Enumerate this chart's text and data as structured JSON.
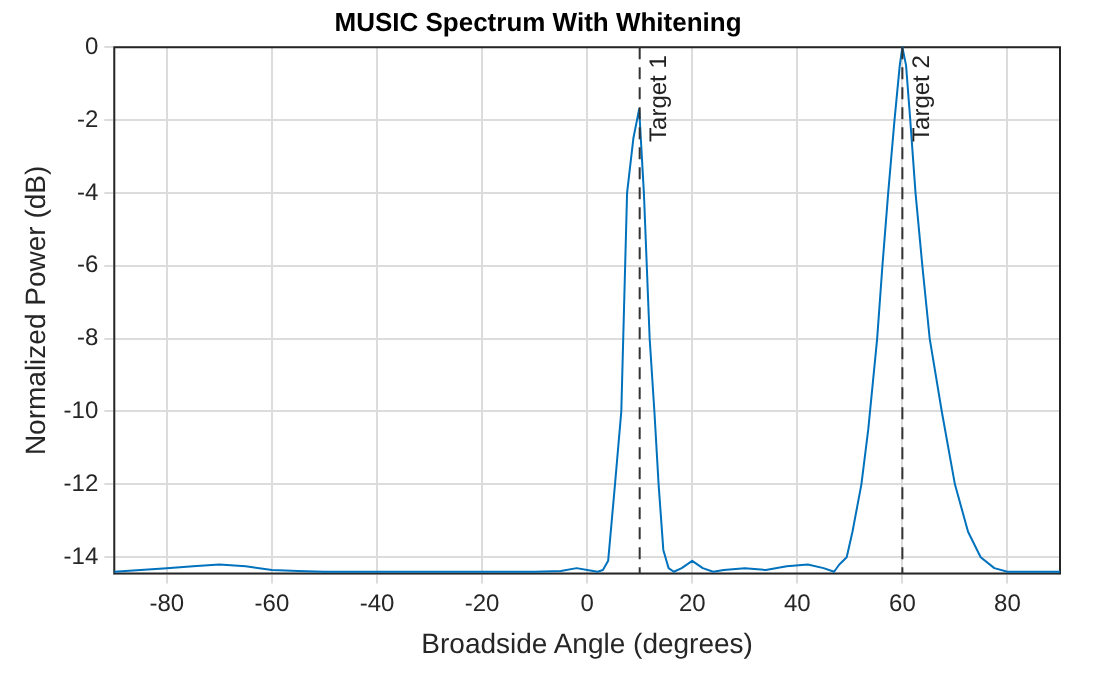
{
  "chart_data": {
    "type": "line",
    "title": "MUSIC Spectrum With Whitening",
    "xlabel": "Broadside Angle (degrees)",
    "ylabel": "Normalized Power (dB)",
    "series": [
      {
        "color": "#0072bd",
        "x": [
          -90,
          -85,
          -80,
          -75,
          -70,
          -65,
          -60,
          -55,
          -50,
          -40,
          -30,
          -20,
          -10,
          -5,
          -2,
          0,
          2,
          3,
          4,
          5.3,
          6.5,
          7.6,
          8.8,
          9.9,
          10.8,
          11.9,
          12.8,
          13.6,
          14.5,
          15.5,
          16.5,
          18,
          20,
          22,
          24,
          26,
          30,
          34,
          38,
          42,
          45,
          47,
          48,
          49.4,
          50.5,
          52.2,
          53.5,
          55.2,
          56.2,
          57.3,
          58.5,
          59.5,
          60,
          60.7,
          61.5,
          62.5,
          63.8,
          65.2,
          67.5,
          70,
          72.5,
          74.9,
          77.5,
          80,
          85,
          90
        ],
        "values": [
          -14.4,
          -14.35,
          -14.3,
          -14.25,
          -14.2,
          -14.25,
          -14.35,
          -14.38,
          -14.4,
          -14.4,
          -14.4,
          -14.4,
          -14.4,
          -14.38,
          -14.3,
          -14.35,
          -14.4,
          -14.35,
          -14.1,
          -12,
          -10,
          -4,
          -2.5,
          -1.7,
          -4,
          -8,
          -10,
          -12,
          -13.8,
          -14.3,
          -14.4,
          -14.3,
          -14.1,
          -14.3,
          -14.4,
          -14.35,
          -14.3,
          -14.35,
          -14.25,
          -14.2,
          -14.3,
          -14.4,
          -14.2,
          -14,
          -13.3,
          -12,
          -10.5,
          -8,
          -6,
          -4,
          -2,
          -0.5,
          0,
          -0.5,
          -2,
          -4,
          -6,
          -8,
          -10,
          -12,
          -13.3,
          -14,
          -14.3,
          -14.4,
          -14.4,
          -14.4
        ]
      }
    ],
    "xlim": [
      -90,
      90
    ],
    "xticks": [
      -80,
      -60,
      -40,
      -20,
      0,
      20,
      40,
      60,
      80
    ],
    "ylim": [
      -14.45,
      0
    ],
    "yticks": [
      -14,
      -12,
      -10,
      -8,
      -6,
      -4,
      -2,
      0
    ],
    "grid": true,
    "legend": false,
    "marker": "none",
    "line_style": "solid",
    "ref_lines": [
      {
        "axis": "x",
        "value": 10,
        "label": "Target 1",
        "color": "#333333",
        "line_style": "dashed"
      },
      {
        "axis": "x",
        "value": 60,
        "label": "Target 2",
        "color": "#333333",
        "line_style": "dashed"
      }
    ]
  }
}
